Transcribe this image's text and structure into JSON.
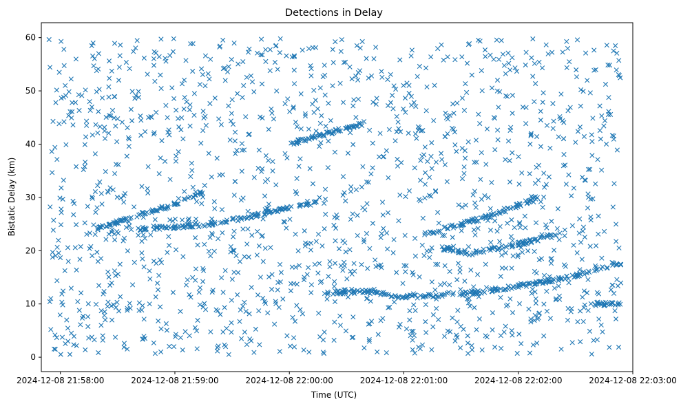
{
  "chart_data": {
    "type": "scatter",
    "title": "Detections in Delay",
    "xlabel": "Time (UTC)",
    "ylabel": "Bistatic Delay (km)",
    "marker": "x",
    "color": "#1f77b4",
    "grid": false,
    "legend": "none",
    "xlim": [
      "2024-12-08 21:57:50",
      "2024-12-08 22:03:00"
    ],
    "ylim": [
      -2.7,
      62.8
    ],
    "x_ticks": [
      "2024-12-08 21:58:00",
      "2024-12-08 21:59:00",
      "2024-12-08 22:00:00",
      "2024-12-08 22:01:00",
      "2024-12-08 22:02:00",
      "2024-12-08 22:03:00"
    ],
    "y_ticks": [
      0,
      10,
      20,
      30,
      40,
      50,
      60
    ],
    "x_range_data": [
      "2024-12-08 21:57:54",
      "2024-12-08 22:02:54"
    ],
    "y_range_data": [
      0.5,
      59.8
    ],
    "tracks": [
      {
        "points": [
          [
            "2024-12-08 22:00:20",
            12.0
          ],
          [
            "2024-12-08 22:00:40",
            12.4
          ],
          [
            "2024-12-08 22:01:00",
            11.3
          ],
          [
            "2024-12-08 22:01:30",
            11.8
          ],
          [
            "2024-12-08 22:02:00",
            13.3
          ],
          [
            "2024-12-08 22:02:30",
            15.3
          ],
          [
            "2024-12-08 22:02:54",
            17.8
          ]
        ]
      },
      {
        "points": [
          [
            "2024-12-08 21:58:18",
            24.0
          ],
          [
            "2024-12-08 21:58:40",
            26.5
          ],
          [
            "2024-12-08 21:59:00",
            28.8
          ],
          [
            "2024-12-08 21:59:15",
            31.0
          ]
        ]
      },
      {
        "points": [
          [
            "2024-12-08 22:01:10",
            23.0
          ],
          [
            "2024-12-08 22:01:25",
            24.5
          ],
          [
            "2024-12-08 22:01:50",
            27.0
          ],
          [
            "2024-12-08 22:02:00",
            28.5
          ],
          [
            "2024-12-08 22:02:10",
            30.0
          ]
        ]
      },
      {
        "points": [
          [
            "2024-12-08 22:01:20",
            20.5
          ],
          [
            "2024-12-08 22:01:35",
            19.5
          ],
          [
            "2024-12-08 22:01:50",
            20.5
          ],
          [
            "2024-12-08 22:02:10",
            22.0
          ],
          [
            "2024-12-08 22:02:20",
            23.0
          ]
        ]
      },
      {
        "points": [
          [
            "2024-12-08 21:58:40",
            24.0
          ],
          [
            "2024-12-08 21:59:20",
            25.0
          ],
          [
            "2024-12-08 21:59:40",
            26.5
          ],
          [
            "2024-12-08 22:00:00",
            28.0
          ],
          [
            "2024-12-08 22:00:15",
            29.0
          ]
        ]
      },
      {
        "points": [
          [
            "2024-12-08 22:00:00",
            40.0
          ],
          [
            "2024-12-08 22:00:20",
            42.0
          ],
          [
            "2024-12-08 22:00:40",
            44.0
          ]
        ]
      },
      {
        "points": [
          [
            "2024-12-08 22:02:40",
            10.0
          ],
          [
            "2024-12-08 22:02:54",
            10.0
          ]
        ]
      }
    ],
    "noise_count": 1500,
    "track_point_count": 650
  }
}
